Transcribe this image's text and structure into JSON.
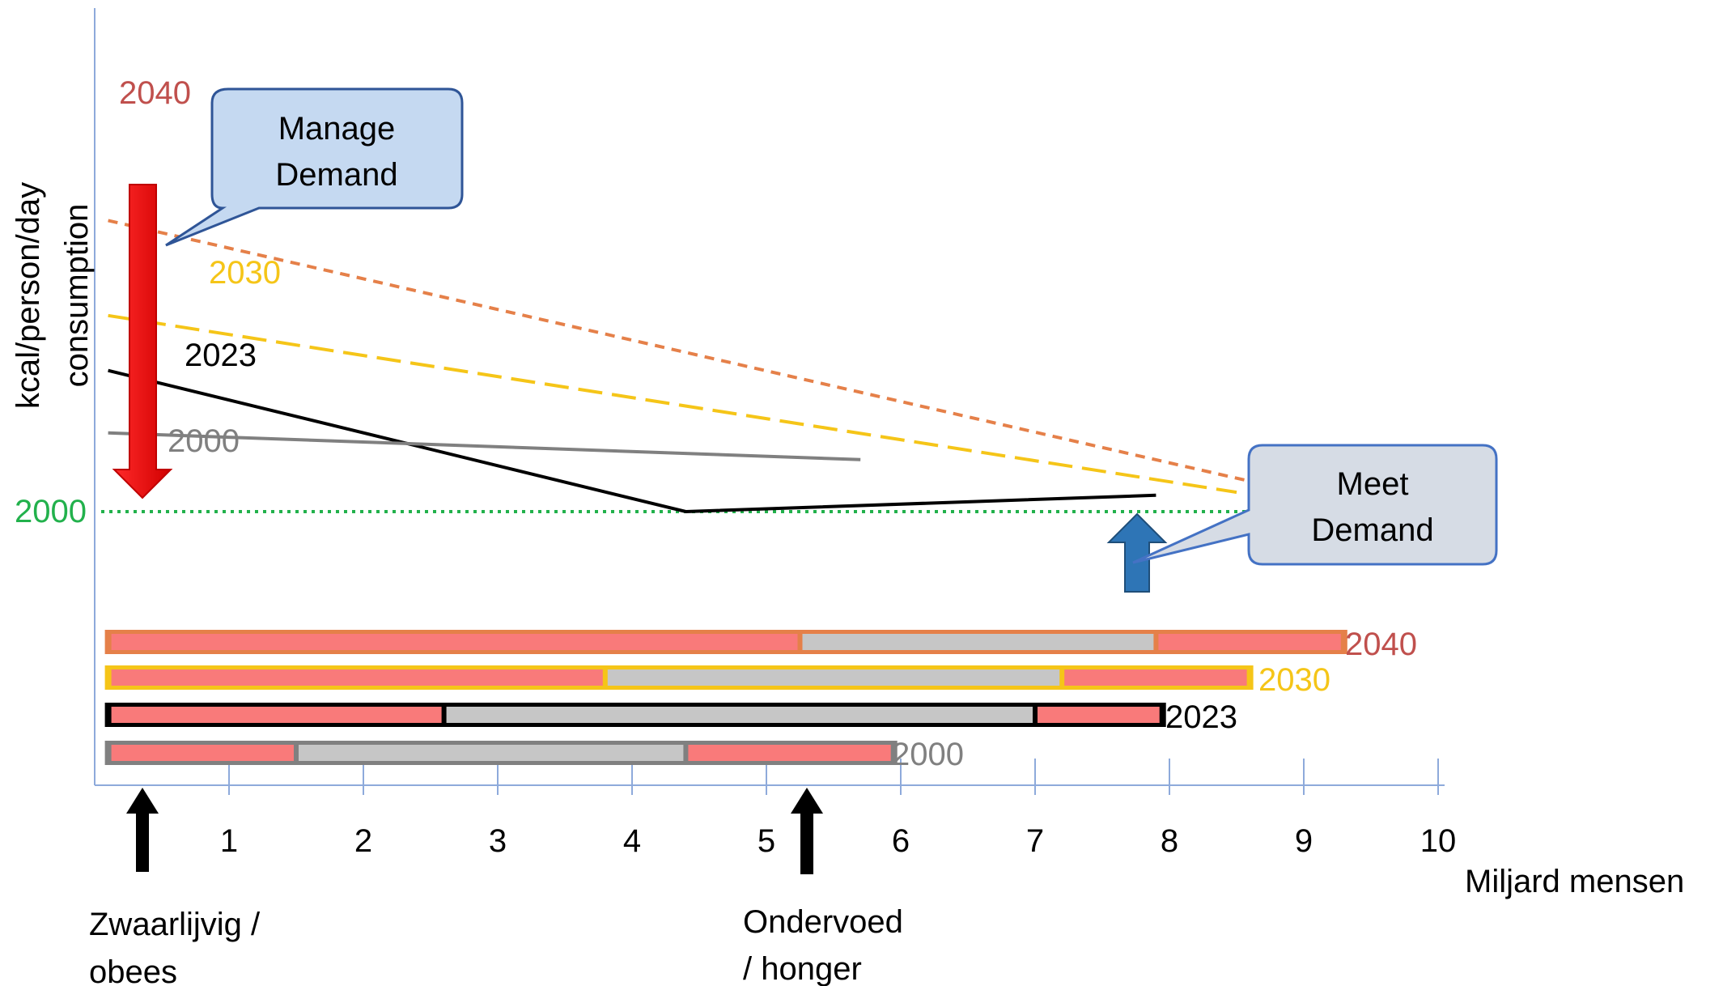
{
  "chart_data": {
    "type": "line",
    "ylabel_line1": "kcal/person/day",
    "ylabel_line2": "consumption",
    "xlabel": "Miljard mensen",
    "xlim": [
      0,
      10
    ],
    "x_ticks": [
      "1",
      "2",
      "3",
      "4",
      "5",
      "6",
      "7",
      "8",
      "9",
      "10"
    ],
    "threshold": {
      "label": "2000",
      "color": "#22b14c"
    },
    "series": [
      {
        "name": "2040",
        "color": "#e58049",
        "label_color": "#c0504d",
        "style": "short-dash",
        "points": [
          [
            0.1,
            3960
          ],
          [
            9.3,
            2060
          ]
        ]
      },
      {
        "name": "2030",
        "color": "#f5c518",
        "label_color": "#f5c518",
        "style": "long-dash",
        "points": [
          [
            0.1,
            3320
          ],
          [
            8.5,
            2130
          ]
        ]
      },
      {
        "name": "2023",
        "color": "#000000",
        "label_color": "#000000",
        "style": "solid",
        "points": [
          [
            0.1,
            2950
          ],
          [
            4.4,
            2000
          ],
          [
            7.9,
            2110
          ]
        ]
      },
      {
        "name": "2000",
        "color": "#808080",
        "label_color": "#808080",
        "style": "solid",
        "points": [
          [
            0.1,
            2530
          ],
          [
            5.7,
            2350
          ]
        ]
      }
    ],
    "bars": [
      {
        "name": "2040",
        "border": "#e58049",
        "label_color": "#c0504d",
        "segments": [
          {
            "from": 0.1,
            "to": 5.25,
            "kind": "obese"
          },
          {
            "from": 5.25,
            "to": 7.9,
            "kind": "normal"
          },
          {
            "from": 7.9,
            "to": 9.3,
            "kind": "hunger"
          }
        ]
      },
      {
        "name": "2030",
        "border": "#f5c518",
        "label_color": "#f5c518",
        "segments": [
          {
            "from": 0.1,
            "to": 3.8,
            "kind": "obese"
          },
          {
            "from": 3.8,
            "to": 7.2,
            "kind": "normal"
          },
          {
            "from": 7.2,
            "to": 8.6,
            "kind": "hunger"
          }
        ]
      },
      {
        "name": "2023",
        "border": "#000000",
        "label_color": "#000000",
        "segments": [
          {
            "from": 0.1,
            "to": 2.6,
            "kind": "obese"
          },
          {
            "from": 2.6,
            "to": 7.0,
            "kind": "normal"
          },
          {
            "from": 7.0,
            "to": 7.95,
            "kind": "hunger"
          }
        ]
      },
      {
        "name": "2000",
        "border": "#808080",
        "label_color": "#808080",
        "segments": [
          {
            "from": 0.1,
            "to": 1.5,
            "kind": "obese"
          },
          {
            "from": 1.5,
            "to": 4.4,
            "kind": "normal"
          },
          {
            "from": 4.4,
            "to": 5.95,
            "kind": "hunger"
          }
        ]
      }
    ],
    "segment_colors": {
      "obese": "#f97a7a",
      "normal": "#c6c6c6",
      "hunger": "#f97a7a"
    },
    "annotations": {
      "manage_demand": {
        "line1": "Manage",
        "line2": "Demand",
        "fill": "#c5d9f1",
        "stroke": "#2f5597"
      },
      "meet_demand": {
        "line1": "Meet",
        "line2": "Demand",
        "fill": "#d6dce5",
        "stroke": "#4472c4"
      },
      "obese_label": {
        "line1": "Zwaarlijvig /",
        "line2": "obees"
      },
      "hunger_label": {
        "line1": "Ondervoed",
        "line2": "/ honger"
      }
    },
    "arrow_colors": {
      "down": "#ff0000",
      "up": "#2e75b6",
      "pointer": "#000000"
    },
    "axis_color": "#8eaadb"
  }
}
